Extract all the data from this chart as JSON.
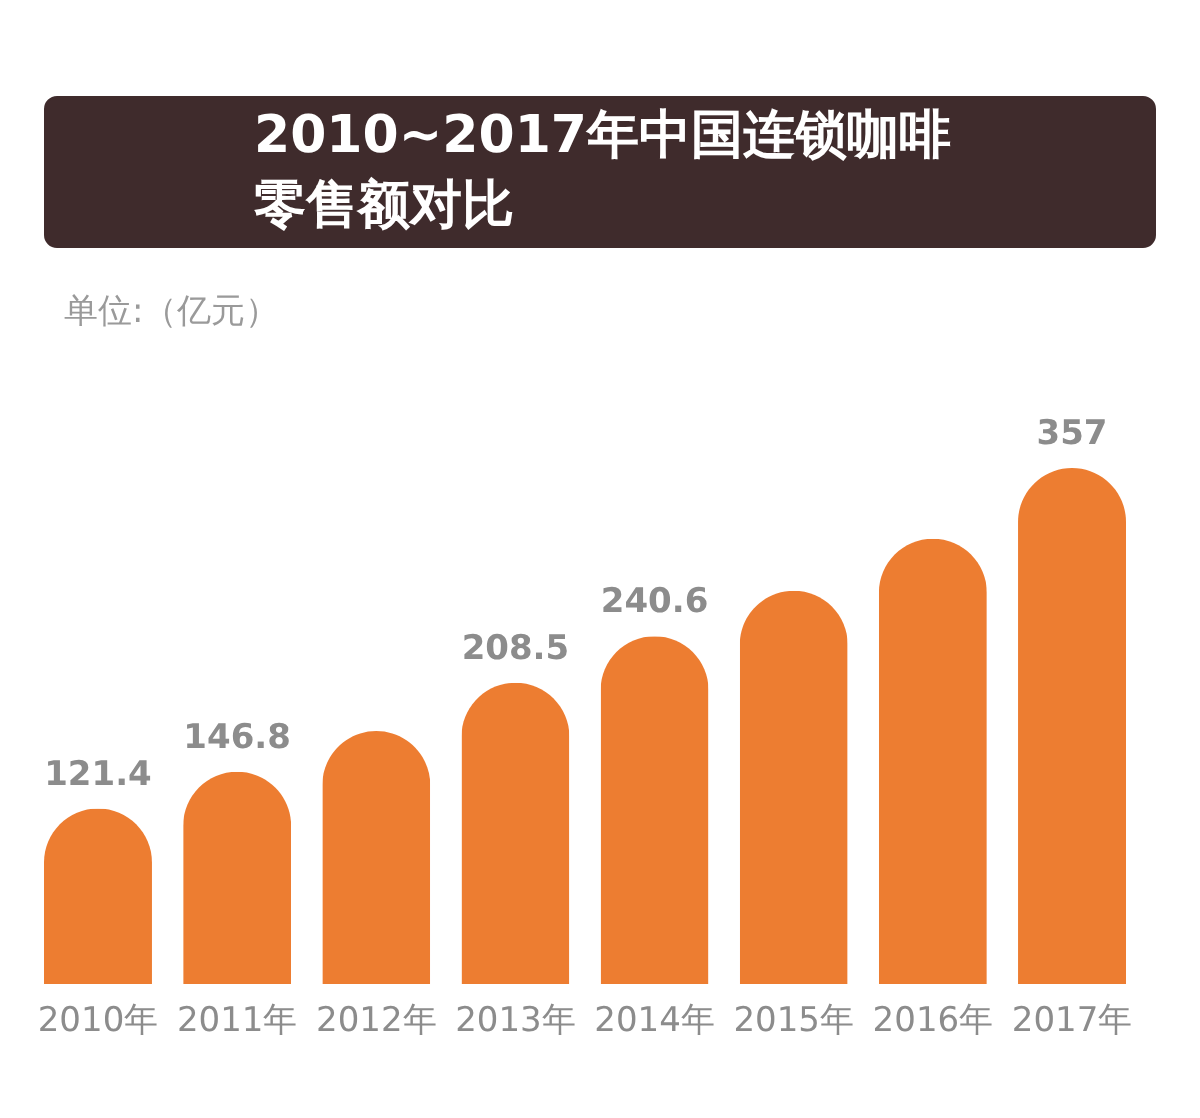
{
  "chart_data": {
    "type": "bar",
    "title": "2010~2017年中国连锁咖啡零售额对比",
    "subtitle": "单位:（亿元）",
    "categories": [
      "2010年",
      "2011年",
      "2012年",
      "2013年",
      "2014年",
      "2015年",
      "2016年",
      "2017年"
    ],
    "values": [
      121.4,
      146.8,
      175,
      208.5,
      240.6,
      272,
      308,
      357
    ],
    "color": "#ed7d31",
    "value_labels": [
      "121.4",
      "146.8",
      null,
      "208.5",
      "240.6",
      null,
      null,
      "357"
    ]
  }
}
